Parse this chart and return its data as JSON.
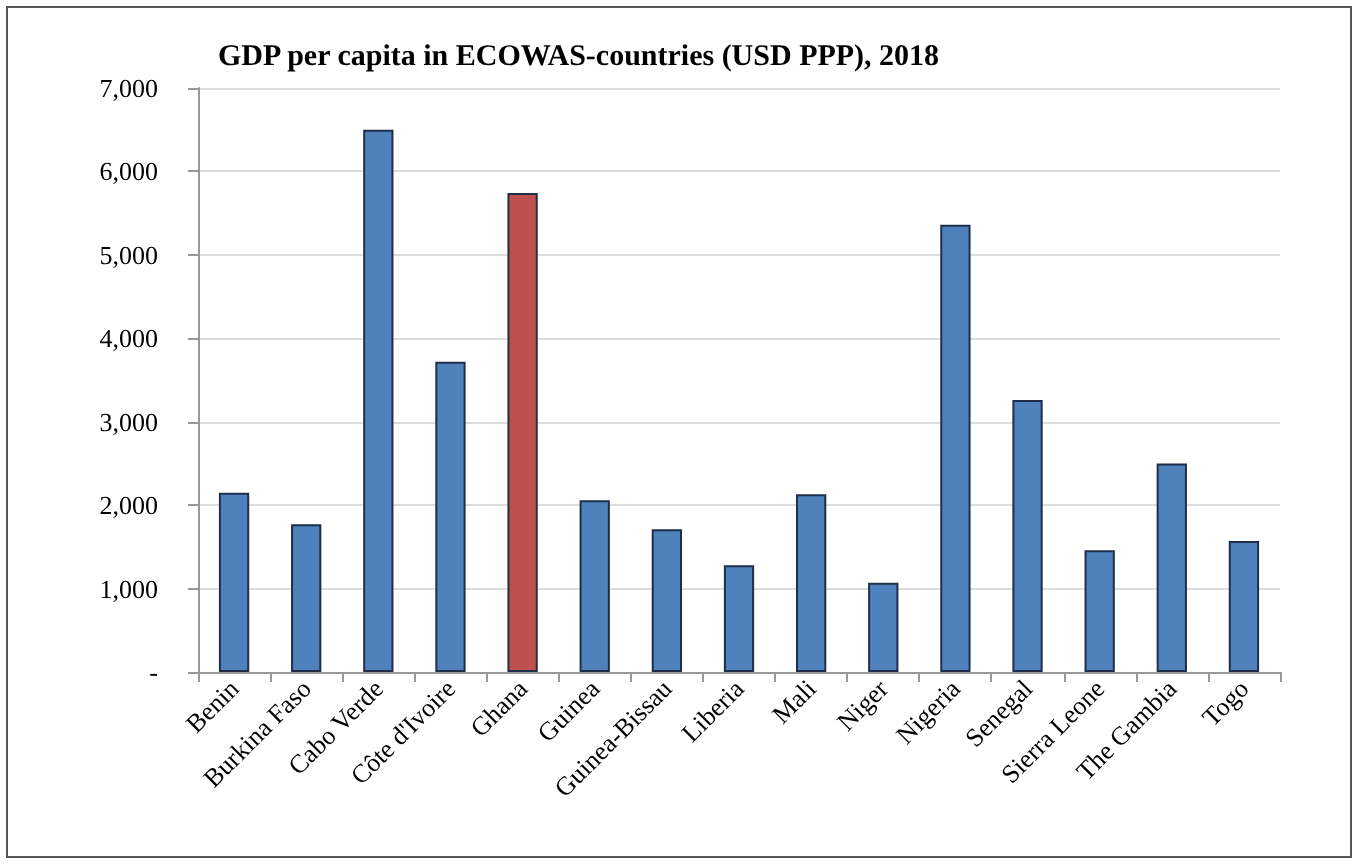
{
  "chart_data": {
    "type": "bar",
    "title": "GDP per capita in ECOWAS-countries (USD PPP), 2018",
    "categories": [
      "Benin",
      "Burkina Faso",
      "Cabo Verde",
      "Côte d'Ivoire",
      "Ghana",
      "Guinea",
      "Guinea-Bissau",
      "Liberia",
      "Mali",
      "Niger",
      "Nigeria",
      "Senegal",
      "Sierra Leone",
      "The Gambia",
      "Togo"
    ],
    "values": [
      2150,
      1770,
      6500,
      3720,
      5740,
      2060,
      1710,
      1280,
      2130,
      1070,
      5360,
      3260,
      1460,
      2500,
      1570
    ],
    "colors": [
      "#4f81bd",
      "#4f81bd",
      "#4f81bd",
      "#4f81bd",
      "#c0504d",
      "#4f81bd",
      "#4f81bd",
      "#4f81bd",
      "#4f81bd",
      "#4f81bd",
      "#4f81bd",
      "#4f81bd",
      "#4f81bd",
      "#4f81bd",
      "#4f81bd"
    ],
    "ylim": [
      0,
      7000
    ],
    "yticks": [
      {
        "value": 0,
        "label": "-"
      },
      {
        "value": 1000,
        "label": "1,000"
      },
      {
        "value": 2000,
        "label": "2,000"
      },
      {
        "value": 3000,
        "label": "3,000"
      },
      {
        "value": 4000,
        "label": "4,000"
      },
      {
        "value": 5000,
        "label": "5,000"
      },
      {
        "value": 6000,
        "label": "6,000"
      },
      {
        "value": 7000,
        "label": "7,000"
      }
    ],
    "grid": "y"
  }
}
